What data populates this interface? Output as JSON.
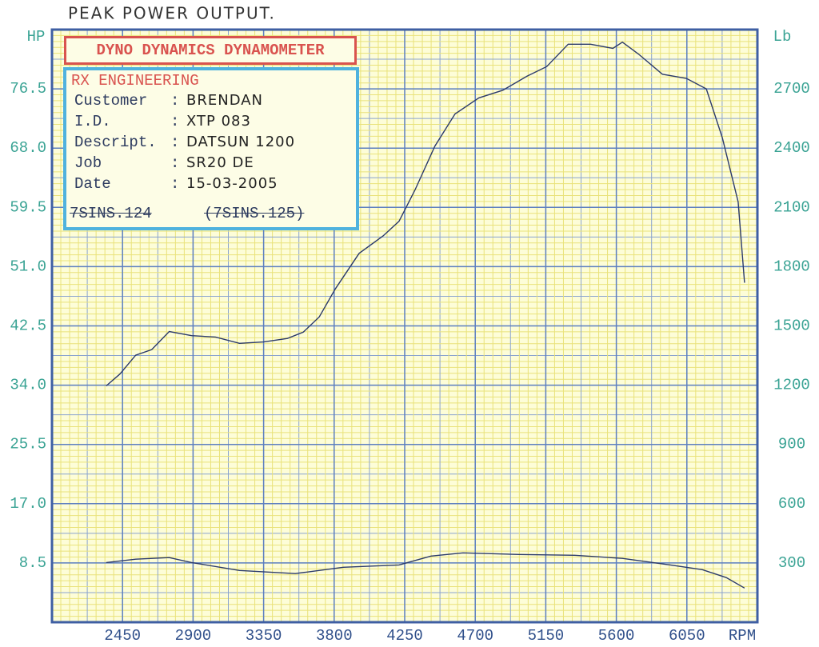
{
  "info_box": {
    "header": "DYNO DYNAMICS DYNAMOMETER",
    "company": "RX ENGINEERING",
    "separator": ":",
    "fields": [
      {
        "label": "Customer",
        "value": "BRENDAN"
      },
      {
        "label": "I.D.",
        "value": "XTP 083"
      },
      {
        "label": "Descript.",
        "value": "DATSUN 1200"
      },
      {
        "label": "Job",
        "value": "SR20 DE"
      },
      {
        "label": "Date",
        "value": "15-03-2005"
      }
    ],
    "footer": [
      "7SINS.124",
      "(7SINS.125)"
    ]
  },
  "chart_data": {
    "type": "line",
    "title": "PEAK POWER OUTPUT.",
    "xlabel": "RPM",
    "ylabel": "HP",
    "y2label": "Lb",
    "xlim": [
      2000,
      6500
    ],
    "xticks": [
      2450,
      2900,
      3350,
      3800,
      4250,
      4700,
      5150,
      5600,
      6050
    ],
    "ylim": [
      0,
      85
    ],
    "yticks": [
      8.5,
      {
        "value": 17,
        "label": "17.0"
      },
      25.5,
      {
        "value": 34,
        "label": "34.0"
      },
      42.5,
      {
        "value": 51,
        "label": "51.0"
      },
      59.5,
      {
        "value": 68,
        "label": "68.0"
      },
      76.5
    ],
    "y2lim": [
      0,
      3000
    ],
    "y2ticks": [
      300,
      600,
      900,
      1200,
      1500,
      1800,
      2100,
      2400,
      2700
    ],
    "grid": true,
    "series": [
      {
        "color": "#2b3a6b",
        "axis": "y",
        "x": [
          2346,
          2433,
          2534,
          2636,
          2748,
          2891,
          3043,
          3196,
          3349,
          3502,
          3603,
          3705,
          3807,
          3959,
          4112,
          4214,
          4316,
          4443,
          4571,
          4723,
          4876,
          5029,
          5156,
          5293,
          5436,
          5578,
          5639,
          5741,
          5894,
          6047,
          6174,
          6276,
          6377,
          6418
        ],
        "values": [
          33.9,
          35.6,
          38.3,
          39.1,
          41.7,
          41.1,
          40.9,
          40.0,
          40.2,
          40.7,
          41.6,
          43.8,
          47.8,
          52.9,
          55.4,
          57.5,
          62.0,
          68.3,
          72.9,
          75.2,
          76.3,
          78.3,
          79.7,
          82.9,
          82.9,
          82.3,
          83.2,
          81.5,
          78.6,
          78.0,
          76.5,
          69.5,
          60.3,
          48.7
        ]
      },
      {
        "color": "#2b3a6b",
        "axis": "y2",
        "x": [
          2346,
          2534,
          2748,
          2891,
          3196,
          3552,
          3858,
          4214,
          4418,
          4622,
          4978,
          5334,
          5639,
          5945,
          6149,
          6301,
          6418
        ],
        "values": [
          302,
          319,
          327,
          302,
          262,
          246,
          278,
          290,
          335,
          351,
          343,
          339,
          323,
          290,
          266,
          226,
          173
        ]
      }
    ]
  }
}
